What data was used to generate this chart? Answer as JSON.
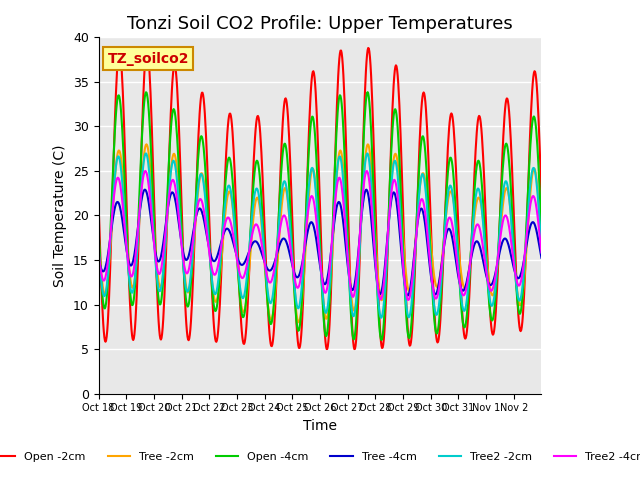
{
  "title": "Tonzi Soil CO2 Profile: Upper Temperatures",
  "xlabel": "Time",
  "ylabel": "Soil Temperature (C)",
  "ylim": [
    0,
    40
  ],
  "yticks": [
    0,
    5,
    10,
    15,
    20,
    25,
    30,
    35,
    40
  ],
  "x_labels": [
    "Oct 18",
    "Oct 19",
    "Oct 20",
    "Oct 21",
    "Oct 22",
    "Oct 23",
    "Oct 24",
    "Oct 25",
    "Oct 26",
    "Oct 27",
    "Oct 28",
    "Oct 29",
    "Oct 30",
    "Oct 31",
    "Nov 1",
    "Nov 2"
  ],
  "series": {
    "Open -2cm": {
      "color": "#FF0000",
      "lw": 1.5
    },
    "Tree -2cm": {
      "color": "#FFA500",
      "lw": 1.5
    },
    "Open -4cm": {
      "color": "#00CC00",
      "lw": 1.5
    },
    "Tree -4cm": {
      "color": "#0000CC",
      "lw": 1.5
    },
    "Tree2 -2cm": {
      "color": "#00CCCC",
      "lw": 1.5
    },
    "Tree2 -4cm": {
      "color": "#FF00FF",
      "lw": 1.5
    }
  },
  "watermark_text": "TZ_soilco2",
  "watermark_bg": "#FFFF99",
  "watermark_border": "#CC8800",
  "bg_color": "#E8E8E8",
  "title_fontsize": 13,
  "label_fontsize": 10
}
